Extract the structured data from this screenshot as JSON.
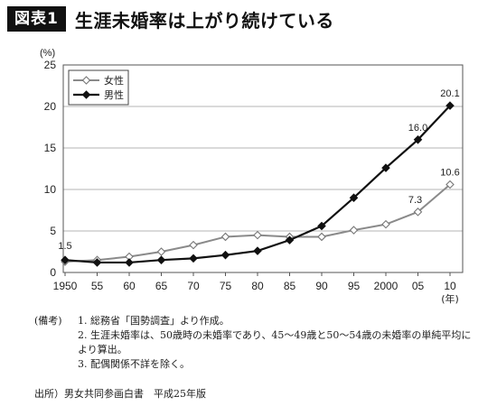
{
  "header": {
    "badge": "図表1",
    "title": "生涯未婚率は上がり続けている"
  },
  "chart_data": {
    "type": "line",
    "title": "",
    "ylabel": "(%)",
    "xlabel": "(年)",
    "ylim": [
      0,
      25
    ],
    "yticks": [
      0,
      5,
      10,
      15,
      20,
      25
    ],
    "categories": [
      "1950",
      "55",
      "60",
      "65",
      "70",
      "75",
      "80",
      "85",
      "90",
      "95",
      "2000",
      "05",
      "10"
    ],
    "grid": true,
    "legend_position": "top-left",
    "series": [
      {
        "name": "女性",
        "marker": "diamond-open",
        "color": "#888888",
        "values": [
          1.3,
          1.5,
          1.9,
          2.5,
          3.3,
          4.3,
          4.5,
          4.3,
          4.3,
          5.1,
          5.8,
          7.3,
          10.6
        ]
      },
      {
        "name": "男性",
        "marker": "diamond-filled",
        "color": "#111111",
        "values": [
          1.5,
          1.2,
          1.2,
          1.5,
          1.7,
          2.1,
          2.6,
          3.9,
          5.6,
          9.0,
          12.6,
          16.0,
          20.1
        ]
      }
    ],
    "data_labels": [
      {
        "series": 1,
        "index": 0,
        "text": "1.5"
      },
      {
        "series": 0,
        "index": 11,
        "text": "7.3"
      },
      {
        "series": 0,
        "index": 12,
        "text": "10.6"
      },
      {
        "series": 1,
        "index": 11,
        "text": "16.0"
      },
      {
        "series": 1,
        "index": 12,
        "text": "20.1"
      }
    ]
  },
  "notes": {
    "head": "(備考)",
    "items": [
      "1. 総務省「国勢調査」より作成。",
      "2. 生涯未婚率は、50歳時の未婚率であり、45〜49歳と50〜54歳の未婚率の単純平均により算出。",
      "3. 配偶関係不詳を除く。"
    ],
    "source": "出所）男女共同参画白書　平成25年版"
  }
}
